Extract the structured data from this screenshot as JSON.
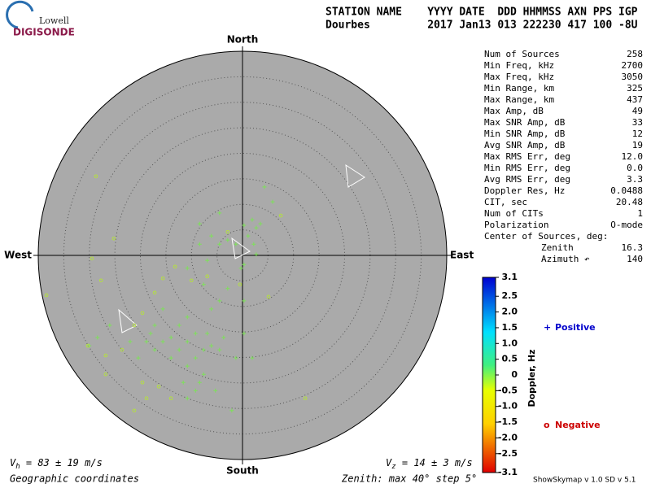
{
  "chart_data": {
    "type": "skymap",
    "logo": {
      "top": "Lowell",
      "bottom": "DIGISONDE"
    },
    "header": [
      "STATION NAME    YYYY DATE  DDD HHMMSS AXN PPS IGP",
      "Dourbes         2017 Jan13 013 222230 417 100 -8U"
    ],
    "stats": [
      {
        "label": "Num of Sources",
        "value": "258"
      },
      {
        "label": "Min Freq, kHz",
        "value": "2700"
      },
      {
        "label": "Max Freq, kHz",
        "value": "3050"
      },
      {
        "label": "Min Range, km",
        "value": "325"
      },
      {
        "label": "Max Range, km",
        "value": "437"
      },
      {
        "label": "Max Amp, dB",
        "value": "49"
      },
      {
        "label": "Max SNR Amp, dB",
        "value": "33"
      },
      {
        "label": "Min SNR Amp, dB",
        "value": "12"
      },
      {
        "label": "Avg SNR Amp, dB",
        "value": "19"
      },
      {
        "label": "Max RMS Err, deg",
        "value": "12.0"
      },
      {
        "label": "Min RMS Err, deg",
        "value": "0.0"
      },
      {
        "label": "Avg RMS Err, deg",
        "value": "3.3"
      },
      {
        "label": "Doppler Res, Hz",
        "value": "0.0488"
      },
      {
        "label": "CIT, sec",
        "value": "20.48"
      },
      {
        "label": "Num of CITs",
        "value": "1"
      },
      {
        "label": "Polarization",
        "value": "O-mode"
      }
    ],
    "center_title": "Center of Sources, deg:",
    "center": [
      {
        "label": "Zenith",
        "value": "16.3"
      },
      {
        "label": "Azimuth ↶",
        "value": "140"
      }
    ],
    "compass": {
      "north": "North",
      "south": "South",
      "west": "West",
      "east": "East"
    },
    "rlim": [
      0,
      40
    ],
    "rticks": [
      5,
      10,
      15,
      20,
      25,
      30,
      35
    ],
    "series": [
      {
        "name": "Positive",
        "marker": "+",
        "legend_color": "#0000cc",
        "color": "#7ee05a",
        "x": [
          0.3,
          1.9,
          2.7,
          1.1,
          3.5,
          2.2,
          2.7,
          -1.3,
          -2.9,
          -6.1,
          -4.5,
          -8.4,
          0.3,
          -0.3,
          -9.2,
          -10.8,
          -12.4,
          -14.0,
          -15.6,
          -17.2,
          -18.0,
          -7.6,
          -6.1,
          -4.5,
          -9.2,
          -10.8,
          -7.6,
          -8.4,
          -11.6,
          -9.2,
          -10.8,
          -5.3,
          -2.1,
          -1.3,
          1.9,
          0.3,
          -4.5,
          -6.1,
          -10.8,
          -15.6,
          -17.2,
          -18.8,
          -20.4,
          -22.0,
          -28.4,
          -30.0,
          -26.0,
          -14.0,
          -12.4,
          -6.9,
          -3.7,
          0.3,
          -2.9,
          -7.6,
          -6.9,
          -10.8,
          4.3,
          5.9,
          -4.5,
          -8.4
        ],
        "values": [
          5.9,
          7.0,
          5.4,
          3.8,
          6.2,
          2.2,
          0.2,
          2.2,
          3.0,
          3.8,
          2.2,
          2.2,
          -1.8,
          -2.5,
          -15.3,
          -16.9,
          -13.7,
          -16.1,
          -16.9,
          -18.5,
          -15.3,
          -18.5,
          -17.7,
          -18.5,
          -20.1,
          -21.7,
          -23.3,
          -24.9,
          -24.9,
          -26.5,
          -28.0,
          -26.5,
          -30.4,
          -20.1,
          -20.1,
          -15.3,
          -8.9,
          -10.5,
          -12.1,
          -10.5,
          -13.7,
          -16.9,
          -20.1,
          -16.9,
          -16.1,
          -17.7,
          -13.7,
          -20.1,
          -18.5,
          -15.3,
          -16.1,
          -8.9,
          -6.5,
          -5.7,
          -1.0,
          -2.5,
          13.4,
          10.5,
          8.3,
          6.2
        ]
      },
      {
        "name": "Negative",
        "marker": "o",
        "legend_color": "#cc0000",
        "color": "#b4e040",
        "x": [
          -28.7,
          -25.2,
          -29.5,
          -27.7,
          -38.4,
          -15.6,
          -13.2,
          -10.0,
          -17.2,
          -19.6,
          -21.2,
          -23.6,
          -26.8,
          -30.3,
          -26.8,
          -19.6,
          -16.4,
          -21.2,
          12.3,
          7.5,
          -6.9,
          -0.5,
          -2.9,
          5.1,
          -18.8,
          -14.0
        ],
        "values": [
          15.5,
          3.3,
          -0.6,
          -4.9,
          -7.8,
          -4.5,
          -2.2,
          -4.9,
          -7.3,
          -11.3,
          -13.7,
          -18.5,
          -19.6,
          -17.7,
          -23.3,
          -24.9,
          -25.7,
          -30.4,
          -28.0,
          7.8,
          -4.1,
          -5.7,
          4.6,
          -8.1,
          -28.0,
          -28.0
        ]
      }
    ],
    "colorbar": {
      "label": "Doppler, Hz",
      "lim": [
        -3.1,
        3.1
      ],
      "ticks": [
        3.1,
        2.5,
        {
          "value": 2,
          "label": "2.0"
        },
        1.5,
        {
          "value": 1,
          "label": "1.0"
        },
        0.5,
        0,
        -0.5,
        {
          "value": -1,
          "label": "-1.0"
        },
        -1.5,
        {
          "value": -2,
          "label": "-2.0"
        },
        -2.5,
        -3.1
      ]
    },
    "vh": {
      "symbol": "V",
      "sub": "h",
      "text": " = 83 ± 19 m/s"
    },
    "vz": {
      "symbol": "V",
      "sub": "z",
      "text": " = 14 ± 3 m/s"
    },
    "coords": "Geographic coordinates",
    "zenith_note": "Zenith: max 40°  step 5°",
    "version": "ShowSkymap v 1.0  SD v 5.1"
  }
}
